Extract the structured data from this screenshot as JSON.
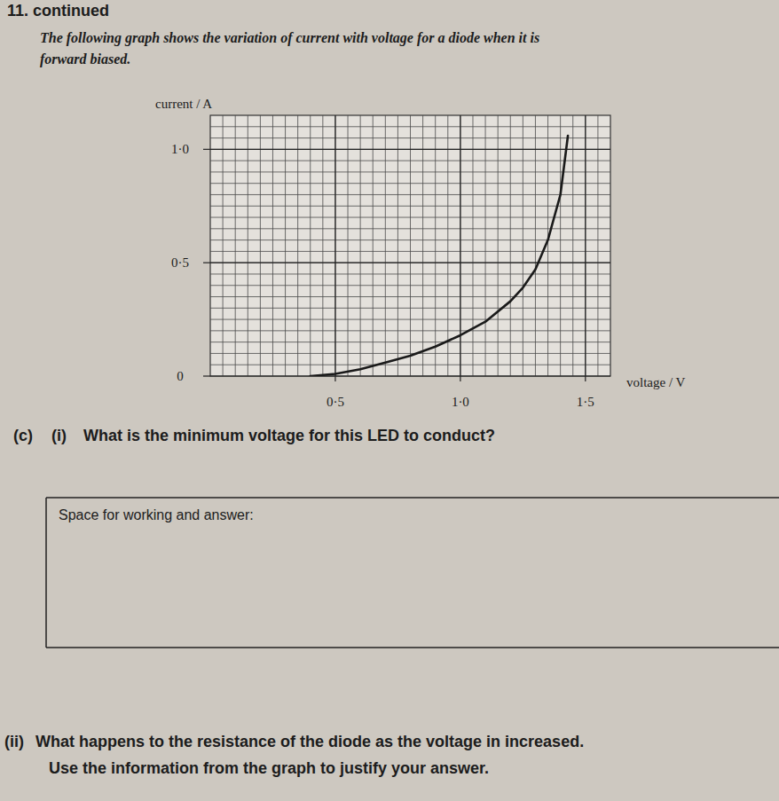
{
  "header": {
    "title": "11. continued",
    "intro_lines": [
      "The following graph shows the variation of current with voltage for a diode when it is",
      "forward biased."
    ]
  },
  "chart_data": {
    "type": "line",
    "y_label": "current / A",
    "x_label": "voltage / V",
    "x": [
      0.4,
      0.5,
      0.6,
      0.7,
      0.8,
      0.9,
      1.0,
      1.1,
      1.2,
      1.25,
      1.3,
      1.35,
      1.4,
      1.43
    ],
    "values": [
      0,
      0.01,
      0.03,
      0.06,
      0.09,
      0.13,
      0.18,
      0.24,
      0.33,
      0.39,
      0.47,
      0.6,
      0.8,
      1.06
    ],
    "color": "#1a1a1a",
    "line_style": "solid",
    "xlim": [
      0,
      1.6
    ],
    "ylim": [
      0,
      1.15
    ],
    "xticks": [
      {
        "value": 0.5,
        "label": "0·5"
      },
      {
        "value": 1.0,
        "label": "1·0"
      },
      {
        "value": 1.5,
        "label": "1·5"
      }
    ],
    "yticks": [
      0,
      {
        "value": 0.5,
        "label": "0·5"
      },
      {
        "value": 1.0,
        "label": "1·0"
      }
    ],
    "grid": true
  },
  "question_c_i": {
    "part": "(c)",
    "number": "(i)",
    "text": "What is the minimum voltage for this LED to conduct?"
  },
  "answer_box": {
    "label": "Space for working and answer:"
  },
  "question_c_ii": {
    "number": "(ii)",
    "text": "What happens to the resistance of the diode as the voltage in increased.",
    "instruction": "Use the information from the graph to justify your answer."
  }
}
